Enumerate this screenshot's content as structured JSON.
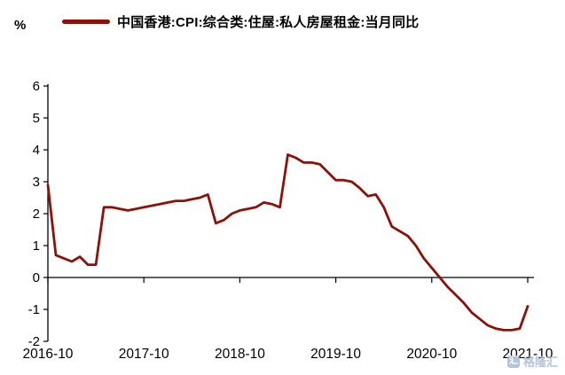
{
  "header": {
    "y_axis_unit": "%",
    "legend": {
      "label": "中国香港:CPI:综合类:住屋:私人房屋租金:当月同比",
      "color": "#8B1209"
    }
  },
  "watermark": {
    "text": "格隆汇",
    "logo_glyph": "汇",
    "color": "#a9bad2"
  },
  "chart_data": {
    "type": "line",
    "title": "",
    "ylabel": "%",
    "xlabel": "",
    "grid": false,
    "zero_line": true,
    "legend_position": "top",
    "ylim": [
      -2,
      6
    ],
    "y_ticks": [
      6,
      5,
      4,
      3,
      2,
      1,
      0,
      -1,
      -2
    ],
    "x_tick_labels": [
      "2016-10",
      "2017-10",
      "2018-10",
      "2019-10",
      "2020-10",
      "2021-10"
    ],
    "x_tick_indices": [
      0,
      12,
      24,
      36,
      48,
      60
    ],
    "x_start": "2016-10",
    "x_freq": "monthly",
    "series": [
      {
        "name": "中国香港:CPI:综合类:住屋:私人房屋租金:当月同比",
        "color": "#8B1209",
        "values": [
          2.9,
          0.7,
          0.6,
          0.5,
          0.65,
          0.4,
          0.4,
          2.2,
          2.2,
          2.15,
          2.1,
          2.15,
          2.2,
          2.25,
          2.3,
          2.35,
          2.4,
          2.4,
          2.45,
          2.5,
          2.6,
          1.7,
          1.8,
          2.0,
          2.1,
          2.15,
          2.2,
          2.35,
          2.3,
          2.2,
          3.85,
          3.75,
          3.6,
          3.6,
          3.55,
          3.3,
          3.05,
          3.05,
          3.0,
          2.8,
          2.55,
          2.6,
          2.2,
          1.6,
          1.45,
          1.3,
          1.0,
          0.6,
          0.3,
          0.0,
          -0.3,
          -0.55,
          -0.8,
          -1.1,
          -1.3,
          -1.5,
          -1.6,
          -1.65,
          -1.65,
          -1.6,
          -0.9
        ]
      }
    ],
    "axis_color": "#000000",
    "tick_label_color": "#000000",
    "tick_label_size": 15
  }
}
